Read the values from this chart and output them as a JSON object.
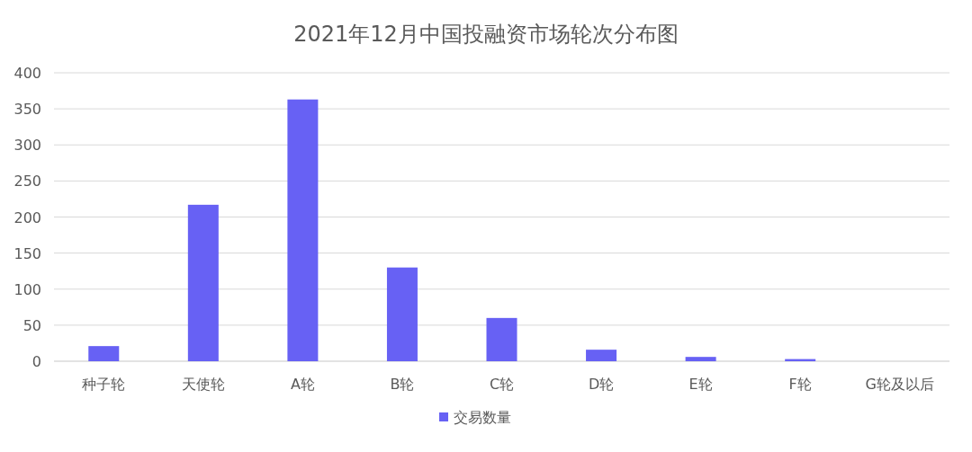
{
  "chart_data": {
    "type": "bar",
    "title": "2021年12月中国投融资市场轮次分布图",
    "categories": [
      "种子轮",
      "天使轮",
      "A轮",
      "B轮",
      "C轮",
      "D轮",
      "E轮",
      "F轮",
      "G轮及以后"
    ],
    "series": [
      {
        "name": "交易数量",
        "color": "#6761f4",
        "values": [
          21,
          217,
          363,
          130,
          60,
          16,
          6,
          3,
          0
        ]
      }
    ],
    "ylim": [
      0,
      400
    ],
    "yticks": [
      0,
      50,
      100,
      150,
      200,
      250,
      300,
      350,
      400
    ],
    "grid": "y",
    "legend": "bottom"
  }
}
